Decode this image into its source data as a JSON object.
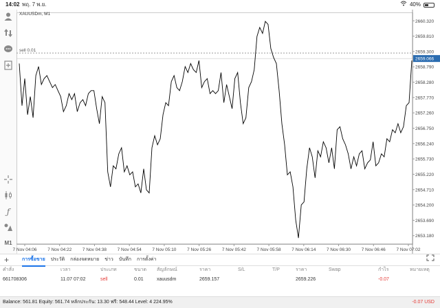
{
  "status_bar": {
    "time": "14:02",
    "date": "พฤ. 7 พ.ย.",
    "battery": "40%",
    "battery_level": 0.4,
    "wifi_icon": "wifi-icon"
  },
  "toolbar": {
    "icons": [
      "account-icon",
      "trade-arrows-icon",
      "chat-icon",
      "new-order-icon",
      "crosshair-icon",
      "candlestick-icon",
      "function-icon",
      "objects-icon"
    ],
    "timeframe": "M1"
  },
  "chart": {
    "symbol_label": "XAUUSDm, M1",
    "order_line_label": "sell 0.01",
    "current_price_label": "2659.066",
    "colors": {
      "line": "#000000",
      "price_tag": "#2b6cb0",
      "grid": "#eeeeee"
    }
  },
  "chart_data": {
    "type": "line",
    "title": "XAUUSDm, M1",
    "xlabel": "",
    "ylabel": "",
    "ylim": [
      2652.9,
      2660.6
    ],
    "y_ticks": [
      "2660.320",
      "2659.810",
      "2659.300",
      "2659.066",
      "2658.790",
      "2658.280",
      "2657.770",
      "2657.260",
      "2656.750",
      "2656.240",
      "2655.730",
      "2655.220",
      "2654.710",
      "2654.200",
      "2653.690",
      "2653.180"
    ],
    "x_ticks": [
      "7 Nov 04:06",
      "7 Nov 04:22",
      "7 Nov 04:38",
      "7 Nov 04:54",
      "7 Nov 05:10",
      "7 Nov 05:26",
      "7 Nov 05:42",
      "7 Nov 05:58",
      "7 Nov 06:14",
      "7 Nov 06:30",
      "7 Nov 06:46",
      "7 Nov 07:02"
    ],
    "series": [
      {
        "values": [
          2658.9,
          2657.5,
          2658.4,
          2657.2,
          2657.8,
          2657.1,
          2658.5,
          2658.8,
          2658.2,
          2658.4,
          2658.5,
          2658.3,
          2658.1,
          2658.2,
          2658.0,
          2657.8,
          2657.3,
          2657.5,
          2657.9,
          2657.7,
          2657.9,
          2657.3,
          2657.6,
          2657.7,
          2657.5,
          2657.9,
          2658.0,
          2658.0,
          2657.4,
          2656.9,
          2657.8,
          2657.6,
          2655.3,
          2654.8,
          2655.5,
          2655.4,
          2655.9,
          2656.1,
          2655.3,
          2655.5,
          2655.2,
          2655.3,
          2654.8,
          2654.9,
          2654.6,
          2655.4,
          2654.7,
          2654.6,
          2656.1,
          2656.5,
          2656.2,
          2656.4,
          2657.2,
          2657.6,
          2657.5,
          2658.3,
          2658.5,
          2658.1,
          2658.0,
          2658.3,
          2658.8,
          2658.6,
          2658.9,
          2658.7,
          2658.6,
          2659.0,
          2658.1,
          2658.3,
          2658.4,
          2657.9,
          2658.0,
          2657.9,
          2658.0,
          2658.6,
          2657.6,
          2658.2,
          2657.8,
          2657.4,
          2658.4,
          2658.6,
          2657.6,
          2656.9,
          2657.1,
          2658.1,
          2658.3,
          2658.7,
          2659.8,
          2660.1,
          2659.9,
          2660.3,
          2660.2,
          2659.4,
          2659.1,
          2658.9,
          2658.0,
          2656.9,
          2656.2,
          2655.2,
          2655.3,
          2654.8,
          2653.7,
          2653.1,
          2654.2,
          2654.3,
          2655.4,
          2656.1,
          2655.8,
          2655.1,
          2656.0,
          2655.8,
          2656.3,
          2656.1,
          2655.6,
          2656.1,
          2655.4,
          2656.7,
          2656.8,
          2656.4,
          2656.2,
          2655.9,
          2655.4,
          2655.8,
          2655.5,
          2655.9,
          2656.0,
          2655.4,
          2655.6,
          2655.7,
          2656.3,
          2655.5,
          2655.6,
          2655.9,
          2655.8,
          2656.4,
          2656.3,
          2656.7,
          2656.6,
          2656.9,
          2656.6,
          2656.8,
          2657.5,
          2657.6,
          2659.0
        ]
      }
    ],
    "order_line_value": 2659.25,
    "current_price": 2659.066,
    "grid": true
  },
  "bottom_tabs": {
    "add": "+",
    "tabs": [
      "การซื้อขาย",
      "ประวัติ",
      "กล่องจดหมาย",
      "ข่าว",
      "บันทึก",
      "การตั้งค่า"
    ],
    "active_index": 0
  },
  "trade_table": {
    "headers": [
      "คำสั่ง",
      "เวลา",
      "ประเภท",
      "ขนาด",
      "สัญลักษณ์",
      "ราคา",
      "S/L",
      "T/P",
      "ราคา",
      "Swap",
      "กำไร",
      "หมายเหตุ"
    ],
    "rows": [
      [
        "661708306",
        "11.07 07:02",
        "sell",
        "0.01",
        "xauusdm",
        "2659.157",
        "",
        "",
        "2659.226",
        "",
        "-0.07",
        ""
      ]
    ]
  },
  "balance_bar": {
    "text": "Balance: 561.81 Equity: 561.74 หลักประกัน: 13.30 ฟรี: 548.44 Level: 4 224.95%",
    "profit": "-0.07  USD"
  }
}
